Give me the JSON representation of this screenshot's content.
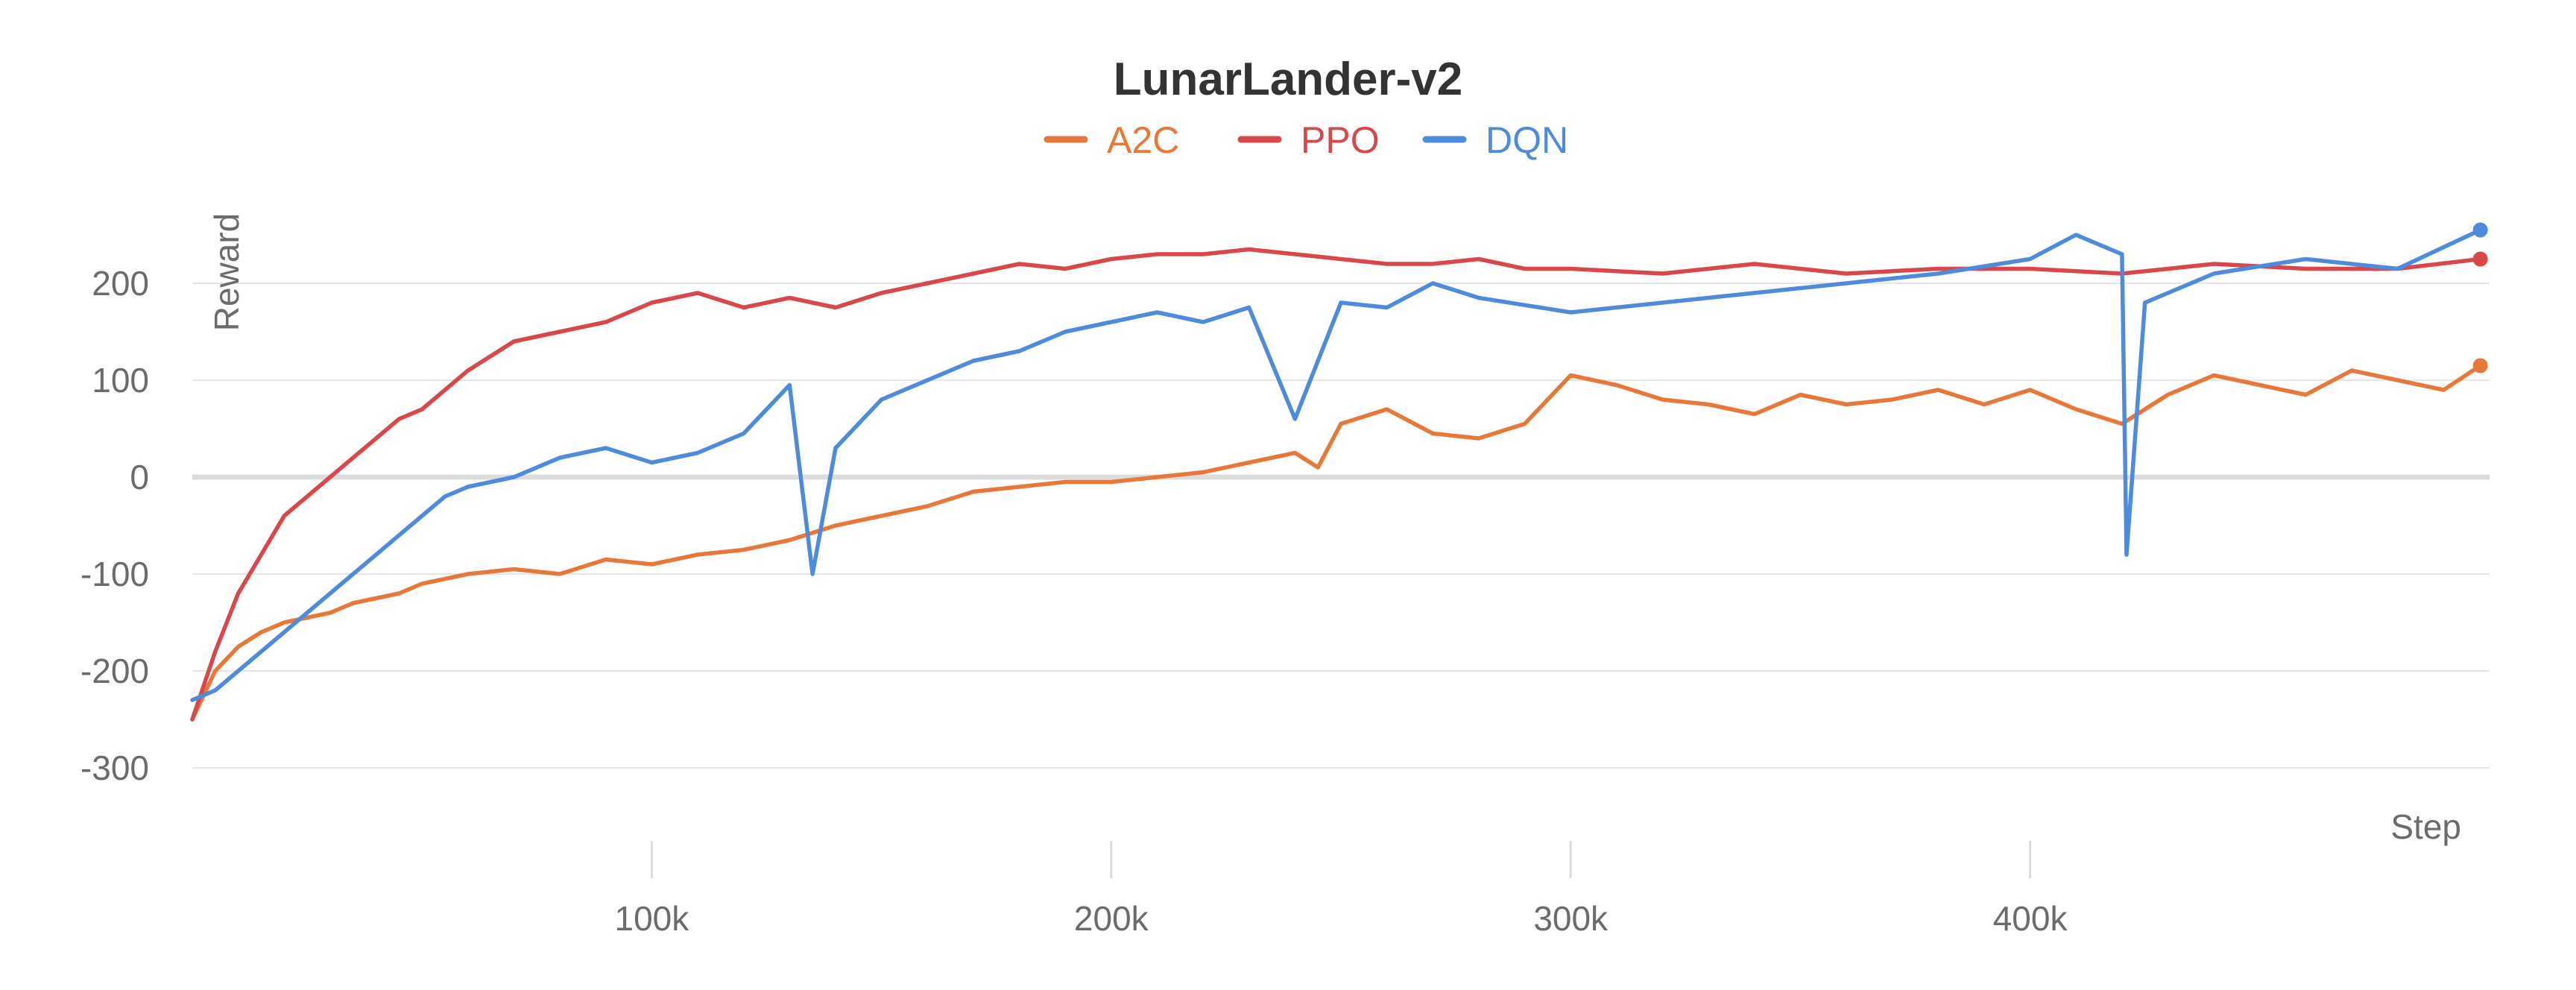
{
  "chart_data": {
    "type": "line",
    "title": "LunarLander-v2",
    "xlabel": "Step",
    "ylabel": "Reward",
    "xlim": [
      0,
      500000
    ],
    "ylim": [
      -350,
      300
    ],
    "x_ticks": [
      100000,
      200000,
      300000,
      400000
    ],
    "x_tick_labels": [
      "100k",
      "200k",
      "300k",
      "400k"
    ],
    "y_ticks": [
      -300,
      -200,
      -100,
      0,
      100,
      200
    ],
    "y_tick_labels": [
      "-300",
      "-200",
      "-100",
      "0",
      "100",
      "200"
    ],
    "grid": true,
    "legend_position": "top-center",
    "series": [
      {
        "name": "A2C",
        "color": "#e8773a",
        "x": [
          0,
          5000,
          10000,
          15000,
          20000,
          25000,
          30000,
          35000,
          40000,
          45000,
          50000,
          60000,
          70000,
          80000,
          90000,
          100000,
          110000,
          120000,
          130000,
          140000,
          150000,
          160000,
          170000,
          180000,
          190000,
          200000,
          210000,
          220000,
          230000,
          240000,
          245000,
          250000,
          260000,
          270000,
          280000,
          290000,
          300000,
          310000,
          320000,
          330000,
          340000,
          350000,
          360000,
          370000,
          380000,
          390000,
          400000,
          410000,
          420000,
          430000,
          440000,
          450000,
          460000,
          470000,
          480000,
          490000,
          498000
        ],
        "values": [
          -250,
          -200,
          -175,
          -160,
          -150,
          -145,
          -140,
          -130,
          -125,
          -120,
          -110,
          -100,
          -95,
          -100,
          -85,
          -90,
          -80,
          -75,
          -65,
          -50,
          -40,
          -30,
          -15,
          -10,
          -5,
          -5,
          0,
          5,
          15,
          25,
          10,
          55,
          70,
          45,
          40,
          55,
          105,
          95,
          80,
          75,
          65,
          85,
          75,
          80,
          90,
          75,
          90,
          70,
          55,
          85,
          105,
          95,
          85,
          110,
          100,
          90,
          115
        ]
      },
      {
        "name": "PPO",
        "color": "#d9474b",
        "x": [
          0,
          5000,
          10000,
          15000,
          20000,
          25000,
          30000,
          35000,
          40000,
          45000,
          50000,
          55000,
          60000,
          70000,
          80000,
          90000,
          100000,
          110000,
          120000,
          130000,
          140000,
          150000,
          160000,
          170000,
          180000,
          190000,
          200000,
          210000,
          220000,
          230000,
          240000,
          250000,
          260000,
          270000,
          280000,
          290000,
          300000,
          320000,
          340000,
          360000,
          380000,
          400000,
          420000,
          440000,
          460000,
          480000,
          498000
        ],
        "values": [
          -250,
          -180,
          -120,
          -80,
          -40,
          -20,
          0,
          20,
          40,
          60,
          70,
          90,
          110,
          140,
          150,
          160,
          180,
          190,
          175,
          185,
          175,
          190,
          200,
          210,
          220,
          215,
          225,
          230,
          230,
          235,
          230,
          225,
          220,
          220,
          225,
          215,
          215,
          210,
          220,
          210,
          215,
          215,
          210,
          220,
          215,
          215,
          225
        ]
      },
      {
        "name": "DQN",
        "color": "#4f8bdc",
        "x": [
          0,
          5000,
          10000,
          15000,
          20000,
          25000,
          30000,
          35000,
          40000,
          45000,
          50000,
          55000,
          60000,
          70000,
          80000,
          90000,
          100000,
          110000,
          120000,
          130000,
          135000,
          140000,
          150000,
          160000,
          170000,
          180000,
          190000,
          200000,
          210000,
          220000,
          230000,
          240000,
          250000,
          260000,
          270000,
          280000,
          300000,
          320000,
          340000,
          360000,
          380000,
          400000,
          410000,
          420000,
          421000,
          425000,
          440000,
          460000,
          480000,
          498000
        ],
        "values": [
          -230,
          -220,
          -200,
          -180,
          -160,
          -140,
          -120,
          -100,
          -80,
          -60,
          -40,
          -20,
          -10,
          0,
          20,
          30,
          15,
          25,
          45,
          95,
          -100,
          30,
          80,
          100,
          120,
          130,
          150,
          160,
          170,
          160,
          175,
          60,
          180,
          175,
          200,
          185,
          170,
          180,
          190,
          200,
          210,
          225,
          250,
          230,
          -80,
          180,
          210,
          225,
          215,
          255
        ]
      }
    ]
  }
}
